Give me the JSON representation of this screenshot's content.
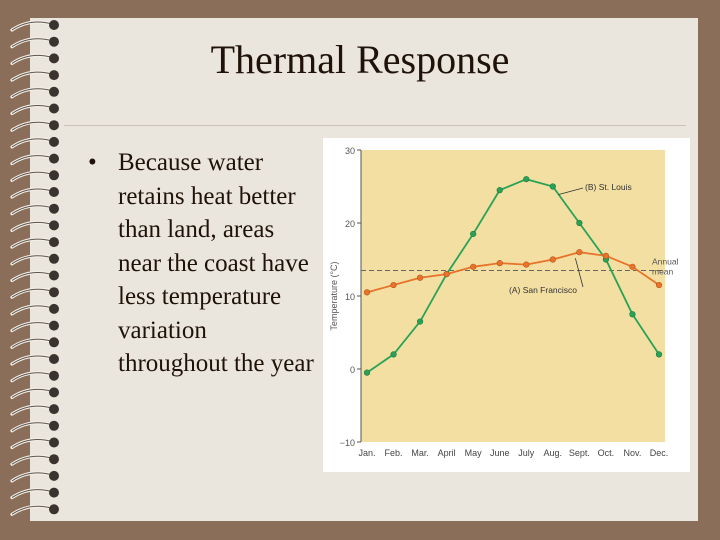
{
  "slide": {
    "title": "Thermal Response",
    "bullet": "Because water retains heat better than land, areas near the coast have less temperature variation throughout the year"
  },
  "colors": {
    "background": "#8a6e5a",
    "slide": "#ebe6dd",
    "plot_area": "#f3dfa2",
    "st_louis": "#2aa256",
    "san_francisco": "#e8732a",
    "title_text": "#1f1208"
  },
  "chart_data": {
    "type": "line",
    "title": "",
    "xlabel": "",
    "ylabel": "Temperature (°C)",
    "ylim": [
      -10,
      30
    ],
    "yticks": [
      "30",
      "20",
      "10",
      "0",
      "−10"
    ],
    "yticks_values": [
      30,
      20,
      10,
      0,
      -10
    ],
    "categories": [
      "Jan.",
      "Feb.",
      "Mar.",
      "April",
      "May",
      "June",
      "July",
      "Aug.",
      "Sept.",
      "Oct.",
      "Nov.",
      "Dec."
    ],
    "series": [
      {
        "name": "(B) St. Louis",
        "values": [
          -0.5,
          2,
          6.5,
          13,
          18.5,
          24.5,
          26,
          25,
          20,
          15,
          7.5,
          2
        ]
      },
      {
        "name": "(A) San Francisco",
        "values": [
          10.5,
          11.5,
          12.5,
          13,
          14,
          14.5,
          14.3,
          15,
          16,
          15.5,
          14,
          11.5
        ]
      }
    ],
    "annual_mean": 13.5,
    "annual_mean_label": [
      "Annual",
      "mean"
    ],
    "grid": false,
    "legend": "inline labels"
  }
}
